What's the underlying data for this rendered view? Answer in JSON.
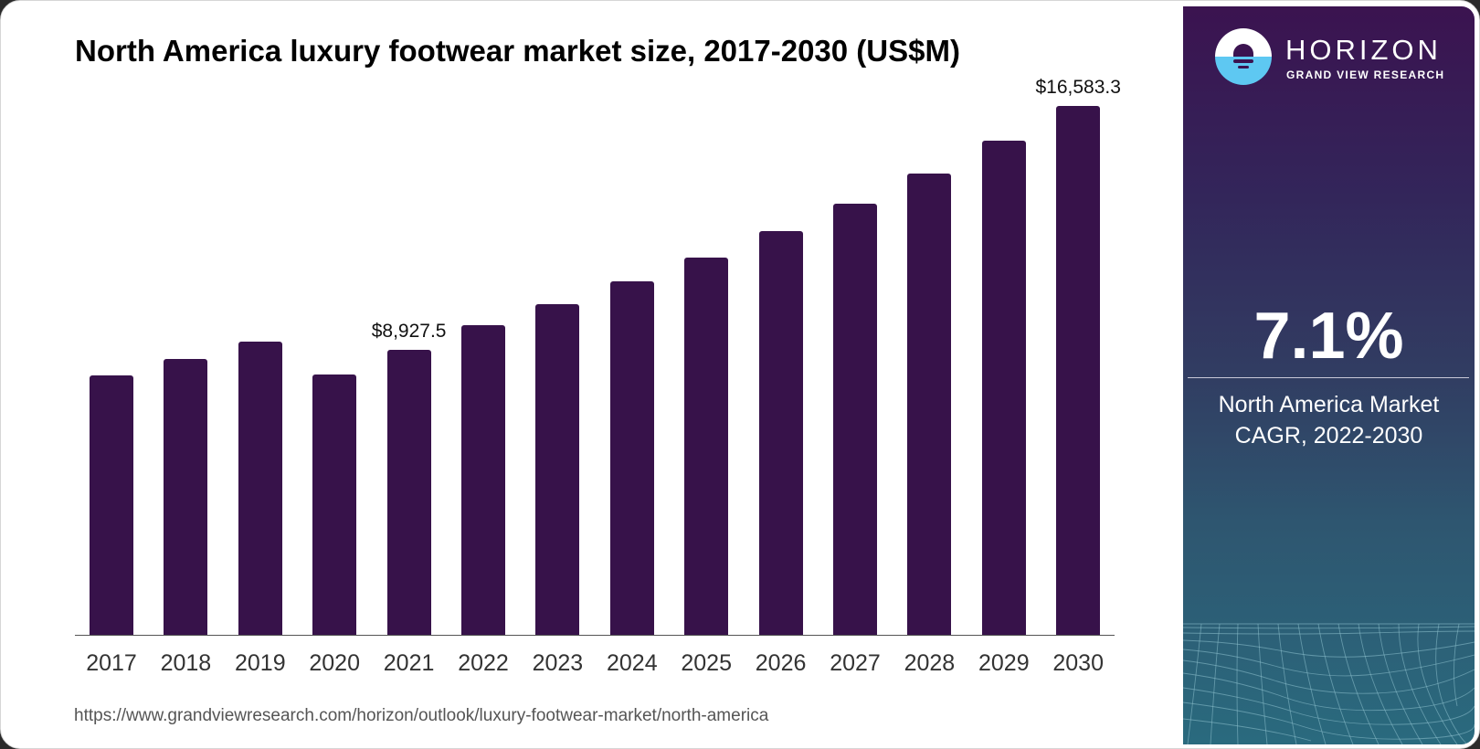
{
  "chart_data": {
    "type": "bar",
    "title": "North America luxury footwear market size, 2017-2030 (US$M)",
    "xlabel": "",
    "ylabel": "US$M",
    "categories": [
      "2017",
      "2018",
      "2019",
      "2020",
      "2021",
      "2022",
      "2023",
      "2024",
      "2025",
      "2026",
      "2027",
      "2028",
      "2029",
      "2030"
    ],
    "values": [
      8134,
      8650,
      9194,
      8163,
      8927.5,
      9709,
      10368,
      11084,
      11829,
      12660,
      13519,
      14464,
      15495,
      16583.3
    ],
    "data_labels": [
      {
        "category": "2021",
        "text": "$8,927.5"
      },
      {
        "category": "2030",
        "text": "$16,583.3"
      }
    ],
    "ylim": [
      0,
      17000
    ],
    "grid": false,
    "legend": null,
    "bar_color": "#37124a"
  },
  "header": {
    "title": "North America luxury footwear market size, 2017-2030 (US$M)"
  },
  "footer": {
    "source_url": "https://www.grandviewresearch.com/horizon/outlook/luxury-footwear-market/north-america"
  },
  "panel": {
    "brand": "HORIZON",
    "brand_sub": "GRAND VIEW RESEARCH",
    "logo_icon": "horizon-sun-logo",
    "cagr_value": "7.1%",
    "cagr_caption_line1": "North America Market",
    "cagr_caption_line2": "CAGR, 2022-2030",
    "colors": {
      "top": "#3b1350",
      "bottom": "#2a6a7e",
      "logo_blue": "#5ec8f2"
    }
  }
}
